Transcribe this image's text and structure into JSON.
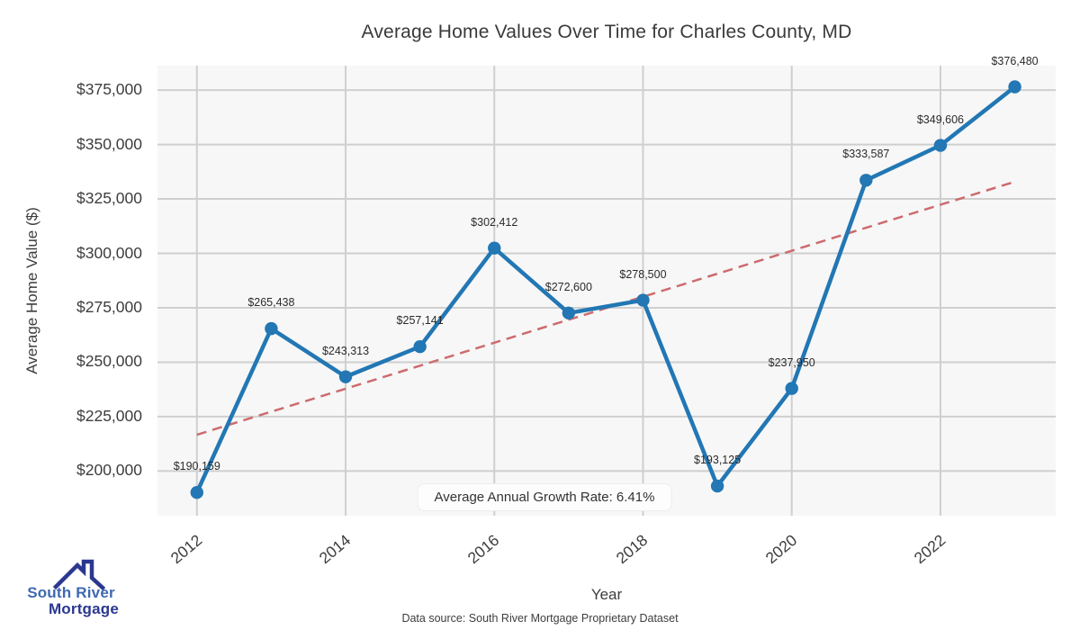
{
  "title": "Average Home Values Over Time for Charles County, MD",
  "chart_data": {
    "type": "line",
    "title": "Average Home Values Over Time for Charles County, MD",
    "xlabel": "Year",
    "ylabel": "Average Home Value ($)",
    "x": [
      2012,
      2013,
      2014,
      2015,
      2016,
      2017,
      2018,
      2019,
      2020,
      2021,
      2022,
      2023
    ],
    "series": [
      {
        "name": "Average Home Value",
        "color": "#2277b4",
        "values": [
          190159,
          265438,
          243313,
          257141,
          302412,
          272600,
          278500,
          193125,
          237950,
          333587,
          349606,
          376480
        ],
        "point_labels": [
          "$190,159",
          "$265,438",
          "$243,313",
          "$257,141",
          "$302,412",
          "$272,600",
          "$278,500",
          "$193,125",
          "$237,950",
          "$333,587",
          "$349,606",
          "$376,480"
        ]
      },
      {
        "name": "Trend",
        "color": "#cd6b6e",
        "style": "dashed",
        "x": [
          2012,
          2023
        ],
        "values": [
          216700,
          332900
        ]
      }
    ],
    "xticks": [
      2012,
      2014,
      2016,
      2018,
      2020,
      2022
    ],
    "yticks": [
      200000,
      225000,
      250000,
      275000,
      300000,
      325000,
      350000,
      375000
    ],
    "ytick_labels": [
      "$200,000",
      "$225,000",
      "$250,000",
      "$275,000",
      "$300,000",
      "$325,000",
      "$350,000",
      "$375,000"
    ],
    "xlim": [
      2011.47,
      2023.55
    ],
    "ylim": [
      179500,
      386200
    ],
    "grid": true,
    "legend_position": "none",
    "annotation": "Average Annual Growth Rate: 6.41%"
  },
  "annotation": {
    "growth_rate_label": "Average Annual Growth Rate: 6.41%"
  },
  "logo": {
    "line1": "South River",
    "line2": "Mortgage"
  },
  "footer": {
    "source": "Data source: South River Mortgage Proprietary Dataset"
  },
  "colors": {
    "series_line": "#2277b4",
    "trend_line": "#cd6b6e",
    "plot_background": "#f7f7f7",
    "gridline": "#cfcfcf",
    "logo_navy": "#2b3890",
    "logo_blue": "#3e68b2"
  }
}
